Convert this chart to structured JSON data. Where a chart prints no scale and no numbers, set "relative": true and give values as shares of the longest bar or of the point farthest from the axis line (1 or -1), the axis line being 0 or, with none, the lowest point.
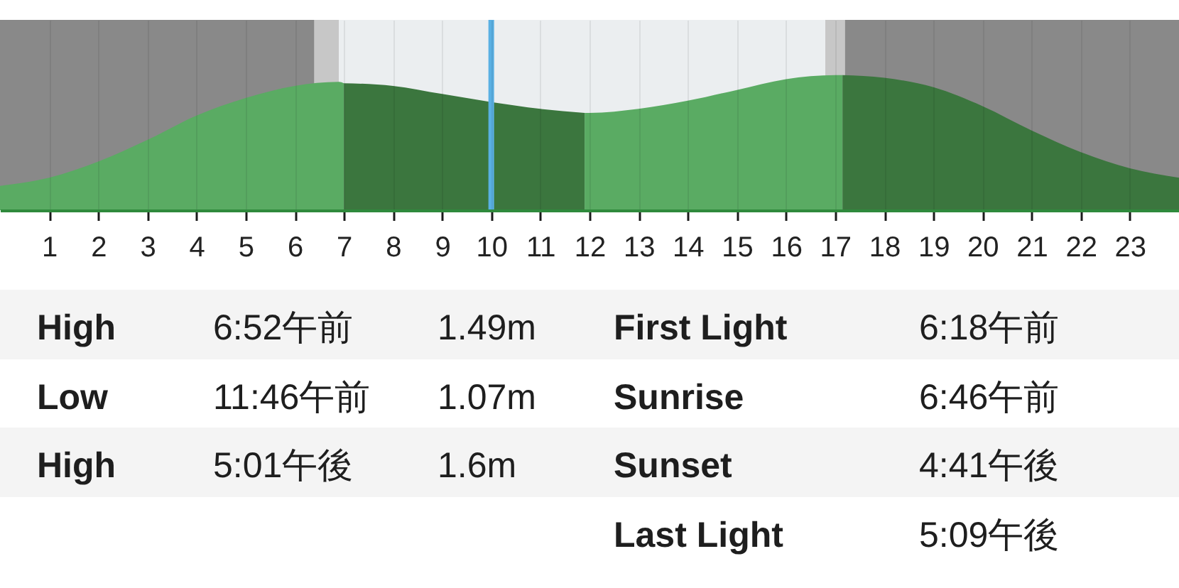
{
  "chart_data": {
    "type": "area",
    "relative": true,
    "xlim": [
      0,
      24
    ],
    "xticks": [
      1,
      2,
      3,
      4,
      5,
      6,
      7,
      8,
      9,
      10,
      11,
      12,
      13,
      14,
      15,
      16,
      17,
      18,
      19,
      20,
      21,
      22,
      23
    ],
    "grid": "x",
    "series": [
      {
        "color": "#5aab63",
        "x": [
          0,
          1,
          2,
          3,
          4,
          5,
          6,
          6.9,
          7
        ],
        "values": [
          0.18,
          0.24,
          0.36,
          0.52,
          0.7,
          0.83,
          0.92,
          0.95,
          0.94
        ]
      },
      {
        "color": "#3b763e",
        "x": [
          7,
          8,
          9,
          10,
          11,
          11.9
        ],
        "values": [
          0.94,
          0.92,
          0.86,
          0.8,
          0.75,
          0.72
        ]
      },
      {
        "color": "#5aab63",
        "x": [
          11.9,
          12,
          13,
          14,
          15,
          16,
          17,
          17.15
        ],
        "values": [
          0.72,
          0.72,
          0.75,
          0.81,
          0.89,
          0.97,
          1.0,
          1.0
        ]
      },
      {
        "color": "#3b763e",
        "x": [
          17.15,
          18,
          19,
          20,
          21,
          22,
          23,
          24
        ],
        "values": [
          1.0,
          0.98,
          0.91,
          0.77,
          0.59,
          0.43,
          0.31,
          0.24
        ]
      }
    ],
    "bands": [
      {
        "axis": "x",
        "from": 0,
        "to": 6.4,
        "color": "#898989"
      },
      {
        "axis": "x",
        "from": 6.4,
        "to": 6.9,
        "color": "#c7c7c7"
      },
      {
        "axis": "x",
        "from": 6.9,
        "to": 16.8,
        "color": "#ebeef0"
      },
      {
        "axis": "x",
        "from": 16.8,
        "to": 17.2,
        "color": "#c7c7c7"
      },
      {
        "axis": "x",
        "from": 17.2,
        "to": 24,
        "color": "#898989"
      }
    ],
    "ref_lines": [
      {
        "axis": "x",
        "value": 10,
        "color": "#5ab0e3"
      }
    ],
    "annotations": [
      "High",
      "6:52午前",
      "1.49m",
      "Low",
      "11:46午前",
      "1.07m",
      "High",
      "5:01午後",
      "1.6m",
      "First Light",
      "6:18午前",
      "Sunrise",
      "6:46午前",
      "Sunset",
      "4:41午後",
      "Last Light",
      "5:09午後"
    ]
  }
}
